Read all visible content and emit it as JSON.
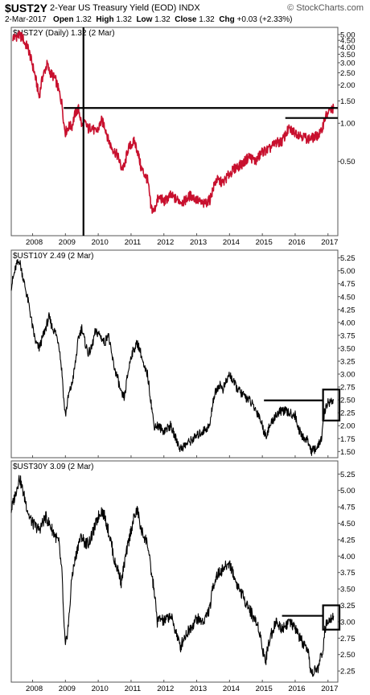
{
  "header": {
    "symbol": "$UST2Y",
    "description": "2-Year US Treasury Yield (EOD)",
    "index_tag": "INDX",
    "brand": "© StockCharts.com",
    "date": "2-Mar-2017",
    "open_label": "Open",
    "open": "1.32",
    "high_label": "High",
    "high": "1.32",
    "low_label": "Low",
    "low": "1.32",
    "close_label": "Close",
    "close": "1.32",
    "chg_label": "Chg",
    "chg": "+0.03 (+2.33%)"
  },
  "colors": {
    "ust2y_line": "#c8102e",
    "line": "#000000",
    "border": "#555555",
    "grid": "#d0d0d0"
  },
  "chart_data": [
    {
      "type": "line",
      "title": "$UST2Y (Daily) 1.32 (2 Mar)",
      "yscale": "log",
      "ylim": [
        0.13,
        5.7
      ],
      "yticks": [
        0.5,
        1.0,
        1.5,
        2.0,
        2.5,
        3.0,
        3.5,
        4.0,
        4.5,
        5.0
      ],
      "ytick_labels": [
        "0.50",
        "1.00",
        "1.50",
        "2.00",
        "2.50",
        "3.00",
        "3.50",
        "4.00",
        "4.50",
        "5.00"
      ],
      "xlim": [
        2007.35,
        2017.3
      ],
      "xticks": [
        2008,
        2009,
        2010,
        2011,
        2012,
        2013,
        2014,
        2015,
        2016,
        2017
      ],
      "xtick_labels": [
        "2008",
        "2009",
        "2010",
        "2011",
        "2012",
        "2013",
        "2014",
        "2015",
        "2016",
        "2017"
      ],
      "series": [
        {
          "x": [
            2007.4,
            2007.5,
            2007.6,
            2007.7,
            2007.75,
            2007.85,
            2007.95,
            2008.1,
            2008.2,
            2008.3,
            2008.35,
            2008.45,
            2008.5,
            2008.6,
            2008.7,
            2008.8,
            2008.9,
            2008.95,
            2009.0,
            2009.1,
            2009.2,
            2009.3,
            2009.4,
            2009.5,
            2009.6,
            2009.7,
            2009.8,
            2009.9,
            2010.0,
            2010.1,
            2010.2,
            2010.3,
            2010.4,
            2010.5,
            2010.6,
            2010.7,
            2010.8,
            2010.9,
            2011.0,
            2011.1,
            2011.2,
            2011.3,
            2011.4,
            2011.5,
            2011.6,
            2011.7,
            2011.8,
            2011.9,
            2012.0,
            2012.2,
            2012.4,
            2012.6,
            2012.8,
            2013.0,
            2013.2,
            2013.4,
            2013.6,
            2013.8,
            2014.0,
            2014.2,
            2014.4,
            2014.6,
            2014.8,
            2015.0,
            2015.2,
            2015.4,
            2015.6,
            2015.8,
            2016.0,
            2016.2,
            2016.4,
            2016.6,
            2016.8,
            2016.9,
            2017.0,
            2017.17
          ],
          "y": [
            4.7,
            4.85,
            4.9,
            4.75,
            4.3,
            4.0,
            3.2,
            2.2,
            1.6,
            2.3,
            2.5,
            2.95,
            2.6,
            2.4,
            2.2,
            1.8,
            1.4,
            1.0,
            0.85,
            0.95,
            0.95,
            1.2,
            1.3,
            0.95,
            1.0,
            0.9,
            0.95,
            0.85,
            0.9,
            1.05,
            0.95,
            0.75,
            0.65,
            0.6,
            0.55,
            0.45,
            0.45,
            0.62,
            0.68,
            0.72,
            0.6,
            0.45,
            0.4,
            0.36,
            0.22,
            0.2,
            0.25,
            0.26,
            0.24,
            0.27,
            0.25,
            0.24,
            0.27,
            0.25,
            0.23,
            0.25,
            0.36,
            0.34,
            0.4,
            0.45,
            0.48,
            0.55,
            0.5,
            0.6,
            0.62,
            0.7,
            0.72,
            0.9,
            0.85,
            0.8,
            0.75,
            0.78,
            0.85,
            1.1,
            1.2,
            1.32
          ]
        }
      ],
      "annotations": {
        "horizontal_lines": [
          {
            "y": 1.32,
            "x_from": 2008.95,
            "x_to": 2017.3
          },
          {
            "y": 1.1,
            "x_from": 2015.7,
            "x_to": 2017.3
          }
        ],
        "vertical_lines": [
          {
            "x": 2009.55,
            "y_from": 0.13,
            "y_to": 5.7
          }
        ]
      }
    },
    {
      "type": "line",
      "title": "$UST10Y 2.49 (2 Mar)",
      "yscale": "linear",
      "ylim": [
        1.38,
        5.4
      ],
      "yticks": [
        1.5,
        1.75,
        2.0,
        2.25,
        2.5,
        2.75,
        3.0,
        3.25,
        3.5,
        3.75,
        4.0,
        4.25,
        4.5,
        4.75,
        5.0,
        5.25
      ],
      "ytick_labels": [
        "1.50",
        "1.75",
        "2.00",
        "2.25",
        "2.50",
        "2.75",
        "3.00",
        "3.25",
        "3.50",
        "3.75",
        "4.00",
        "4.25",
        "4.50",
        "4.75",
        "5.00",
        "5.25"
      ],
      "xlim": [
        2007.35,
        2017.3
      ],
      "series": [
        {
          "x": [
            2007.35,
            2007.5,
            2007.6,
            2007.7,
            2007.8,
            2007.9,
            2008.0,
            2008.1,
            2008.2,
            2008.4,
            2008.5,
            2008.6,
            2008.7,
            2008.8,
            2008.9,
            2008.95,
            2009.0,
            2009.1,
            2009.2,
            2009.3,
            2009.4,
            2009.5,
            2009.6,
            2009.7,
            2009.8,
            2009.9,
            2010.0,
            2010.1,
            2010.2,
            2010.3,
            2010.4,
            2010.5,
            2010.6,
            2010.7,
            2010.8,
            2010.9,
            2011.0,
            2011.1,
            2011.2,
            2011.3,
            2011.4,
            2011.5,
            2011.6,
            2011.7,
            2011.8,
            2011.9,
            2012.0,
            2012.2,
            2012.4,
            2012.5,
            2012.6,
            2012.8,
            2013.0,
            2013.2,
            2013.4,
            2013.5,
            2013.6,
            2013.7,
            2013.8,
            2014.0,
            2014.2,
            2014.4,
            2014.6,
            2014.8,
            2014.9,
            2015.0,
            2015.1,
            2015.2,
            2015.4,
            2015.6,
            2015.8,
            2016.0,
            2016.1,
            2016.2,
            2016.4,
            2016.5,
            2016.6,
            2016.7,
            2016.8,
            2016.85,
            2016.9,
            2017.0,
            2017.17
          ],
          "y": [
            4.7,
            5.1,
            5.2,
            4.9,
            4.6,
            4.3,
            3.9,
            3.6,
            3.5,
            3.9,
            4.1,
            3.9,
            3.8,
            3.6,
            3.0,
            2.5,
            2.2,
            2.6,
            2.8,
            3.2,
            3.7,
            3.9,
            3.6,
            3.4,
            3.5,
            3.8,
            3.8,
            3.7,
            3.6,
            3.8,
            3.4,
            3.1,
            2.9,
            2.6,
            2.55,
            3.0,
            3.35,
            3.5,
            3.6,
            3.4,
            3.1,
            3.0,
            2.5,
            2.0,
            2.0,
            1.95,
            1.9,
            2.0,
            1.7,
            1.55,
            1.6,
            1.7,
            1.8,
            1.9,
            2.0,
            2.5,
            2.7,
            2.8,
            2.7,
            3.0,
            2.75,
            2.6,
            2.5,
            2.3,
            2.2,
            2.0,
            1.8,
            1.95,
            2.2,
            2.3,
            2.25,
            2.2,
            1.95,
            1.8,
            1.7,
            1.5,
            1.55,
            1.6,
            1.75,
            2.0,
            2.3,
            2.45,
            2.49
          ]
        }
      ],
      "annotations": {
        "horizontal_lines": [
          {
            "y": 2.49,
            "x_from": 2015.05,
            "x_to": 2016.85
          }
        ],
        "boxes": [
          {
            "x_from": 2016.85,
            "x_to": 2017.35,
            "y_from": 2.1,
            "y_to": 2.7
          }
        ]
      }
    },
    {
      "type": "line",
      "title": "$UST30Y 3.09 (2 Mar)",
      "yscale": "linear",
      "ylim": [
        2.08,
        5.45
      ],
      "yticks": [
        2.25,
        2.5,
        2.75,
        3.0,
        3.25,
        3.5,
        3.75,
        4.0,
        4.25,
        4.5,
        4.75,
        5.0,
        5.25
      ],
      "ytick_labels": [
        "2.25",
        "2.50",
        "2.75",
        "3.00",
        "3.25",
        "3.50",
        "3.75",
        "4.00",
        "4.25",
        "4.50",
        "4.75",
        "5.00",
        "5.25"
      ],
      "xlim": [
        2007.35,
        2017.3
      ],
      "xticks": [
        2008,
        2009,
        2010,
        2011,
        2012,
        2013,
        2014,
        2015,
        2016,
        2017
      ],
      "xtick_labels": [
        "2008",
        "2009",
        "2010",
        "2011",
        "2012",
        "2013",
        "2014",
        "2015",
        "2016",
        "2017"
      ],
      "series": [
        {
          "x": [
            2007.35,
            2007.5,
            2007.6,
            2007.7,
            2007.8,
            2007.9,
            2008.0,
            2008.2,
            2008.4,
            2008.6,
            2008.8,
            2008.9,
            2008.95,
            2009.0,
            2009.1,
            2009.2,
            2009.4,
            2009.5,
            2009.6,
            2009.7,
            2009.8,
            2010.0,
            2010.1,
            2010.2,
            2010.3,
            2010.4,
            2010.5,
            2010.6,
            2010.7,
            2010.8,
            2011.0,
            2011.1,
            2011.2,
            2011.3,
            2011.4,
            2011.5,
            2011.6,
            2011.7,
            2011.8,
            2011.9,
            2012.0,
            2012.2,
            2012.4,
            2012.5,
            2012.6,
            2012.8,
            2013.0,
            2013.2,
            2013.4,
            2013.5,
            2013.6,
            2013.8,
            2014.0,
            2014.2,
            2014.4,
            2014.6,
            2014.8,
            2014.9,
            2015.0,
            2015.1,
            2015.2,
            2015.4,
            2015.6,
            2015.8,
            2016.0,
            2016.2,
            2016.4,
            2016.5,
            2016.6,
            2016.7,
            2016.8,
            2016.85,
            2016.9,
            2017.0,
            2017.17
          ],
          "y": [
            4.7,
            5.0,
            5.2,
            5.0,
            4.8,
            4.6,
            4.5,
            4.4,
            4.6,
            4.4,
            4.2,
            3.7,
            3.0,
            2.6,
            3.0,
            3.7,
            4.2,
            4.3,
            4.2,
            4.2,
            4.3,
            4.6,
            4.7,
            4.6,
            4.4,
            4.2,
            3.9,
            3.8,
            3.6,
            3.9,
            4.4,
            4.6,
            4.7,
            4.4,
            4.3,
            4.2,
            3.8,
            3.5,
            3.0,
            3.05,
            3.0,
            3.1,
            2.8,
            2.6,
            2.75,
            2.9,
            3.05,
            3.0,
            3.2,
            3.55,
            3.7,
            3.8,
            3.9,
            3.6,
            3.4,
            3.2,
            3.0,
            2.9,
            2.6,
            2.4,
            2.7,
            3.0,
            2.9,
            3.0,
            2.9,
            2.7,
            2.5,
            2.2,
            2.25,
            2.3,
            2.5,
            2.6,
            2.85,
            3.05,
            3.09
          ]
        }
      ],
      "annotations": {
        "horizontal_lines": [
          {
            "y": 3.09,
            "x_from": 2015.6,
            "x_to": 2016.85
          }
        ],
        "boxes": [
          {
            "x_from": 2016.85,
            "x_to": 2017.35,
            "y_from": 2.88,
            "y_to": 3.25
          }
        ]
      }
    }
  ]
}
